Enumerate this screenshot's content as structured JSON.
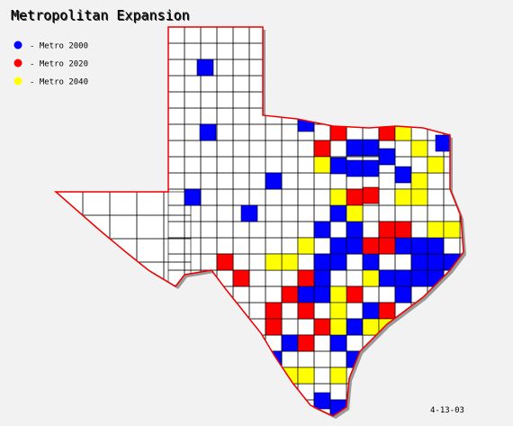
{
  "title": "Metropolitan Expansion",
  "legend": [
    {
      "label": "- Metro 2000",
      "color": "#0000ff"
    },
    {
      "label": "- Metro 2020",
      "color": "#ff0000"
    },
    {
      "label": "- Metro 2040",
      "color": "#ffff00"
    }
  ],
  "date": "4-13-03"
}
